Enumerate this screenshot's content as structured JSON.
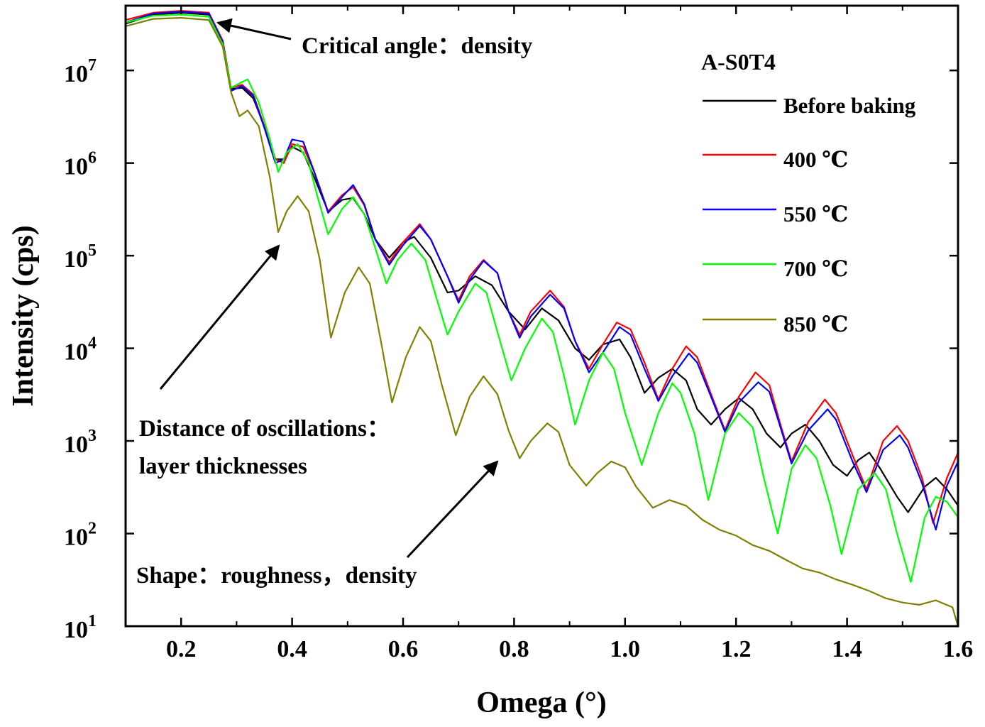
{
  "chart_data": {
    "type": "line",
    "title": "",
    "xlabel": "Omega (°)",
    "ylabel": "Intensity (cps)",
    "yscale": "log",
    "xlim": [
      0.1,
      1.6
    ],
    "ylim": [
      10,
      50000000
    ],
    "x_ticks": [
      "0.2",
      "0.4",
      "0.6",
      "0.8",
      "1.0",
      "1.2",
      "1.4",
      "1.6"
    ],
    "y_ticks": [
      {
        "base": "10",
        "exp": "1"
      },
      {
        "base": "10",
        "exp": "2"
      },
      {
        "base": "10",
        "exp": "3"
      },
      {
        "base": "10",
        "exp": "4"
      },
      {
        "base": "10",
        "exp": "5"
      },
      {
        "base": "10",
        "exp": "6"
      },
      {
        "base": "10",
        "exp": "7"
      }
    ],
    "legend_title": "A-S0T4",
    "legend_placement": "top-right",
    "series": [
      {
        "name": "Before baking",
        "color": "#000000",
        "x": [
          0.1,
          0.15,
          0.2,
          0.25,
          0.275,
          0.29,
          0.31,
          0.33,
          0.35,
          0.37,
          0.385,
          0.4,
          0.42,
          0.44,
          0.465,
          0.49,
          0.51,
          0.53,
          0.55,
          0.575,
          0.6,
          0.62,
          0.65,
          0.68,
          0.7,
          0.73,
          0.76,
          0.79,
          0.82,
          0.85,
          0.88,
          0.91,
          0.935,
          0.96,
          0.99,
          1.01,
          1.035,
          1.06,
          1.085,
          1.11,
          1.13,
          1.155,
          1.18,
          1.205,
          1.23,
          1.255,
          1.28,
          1.3,
          1.325,
          1.35,
          1.375,
          1.4,
          1.42,
          1.44,
          1.46,
          1.49,
          1.51,
          1.54,
          1.56,
          1.58,
          1.6
        ],
        "y": [
          32000000,
          40000000,
          42000000,
          40000000,
          20000000,
          6300000,
          6500000,
          5000000,
          2500000,
          1100000,
          1100000,
          1500000,
          1300000,
          700000,
          300000,
          400000,
          420000,
          280000,
          150000,
          95000,
          140000,
          160000,
          95000,
          40000,
          42000,
          60000,
          48000,
          25000,
          16000,
          27000,
          20000,
          10000,
          7500,
          11000,
          12500,
          8000,
          3300,
          4800,
          6000,
          4500,
          2200,
          1500,
          2200,
          2900,
          2200,
          1200,
          850,
          1200,
          1500,
          1000,
          550,
          420,
          620,
          750,
          500,
          250,
          170,
          320,
          400,
          300,
          200
        ]
      },
      {
        "name": "400 ℃",
        "color": "#ff0000",
        "x": [
          0.1,
          0.15,
          0.2,
          0.25,
          0.275,
          0.29,
          0.31,
          0.33,
          0.35,
          0.37,
          0.385,
          0.4,
          0.42,
          0.44,
          0.465,
          0.49,
          0.51,
          0.53,
          0.55,
          0.575,
          0.6,
          0.63,
          0.65,
          0.68,
          0.7,
          0.72,
          0.745,
          0.77,
          0.79,
          0.81,
          0.83,
          0.865,
          0.89,
          0.91,
          0.935,
          0.96,
          0.985,
          1.01,
          1.035,
          1.06,
          1.085,
          1.11,
          1.13,
          1.155,
          1.18,
          1.205,
          1.235,
          1.26,
          1.28,
          1.3,
          1.33,
          1.36,
          1.38,
          1.41,
          1.435,
          1.465,
          1.49,
          1.51,
          1.535,
          1.555,
          1.58,
          1.6
        ],
        "y": [
          35000000,
          42000000,
          44000000,
          42000000,
          21000000,
          6500000,
          7000000,
          5500000,
          2500000,
          1100000,
          1000000,
          1600000,
          1500000,
          800000,
          300000,
          450000,
          550000,
          350000,
          150000,
          85000,
          140000,
          220000,
          150000,
          60000,
          33000,
          60000,
          90000,
          65000,
          25000,
          14000,
          25000,
          42000,
          28000,
          12000,
          6000,
          11000,
          19000,
          16000,
          7000,
          2800,
          6000,
          10500,
          8000,
          3200,
          1300,
          3000,
          5500,
          4000,
          1500,
          600,
          1600,
          2800,
          2000,
          700,
          300,
          1000,
          1450,
          1000,
          400,
          130,
          400,
          750
        ]
      },
      {
        "name": "550 ℃",
        "color": "#0000ff",
        "x": [
          0.1,
          0.15,
          0.2,
          0.25,
          0.275,
          0.29,
          0.31,
          0.33,
          0.35,
          0.37,
          0.385,
          0.4,
          0.42,
          0.44,
          0.465,
          0.49,
          0.51,
          0.53,
          0.55,
          0.575,
          0.6,
          0.63,
          0.65,
          0.68,
          0.7,
          0.72,
          0.745,
          0.77,
          0.79,
          0.81,
          0.83,
          0.865,
          0.89,
          0.91,
          0.935,
          0.96,
          0.99,
          1.01,
          1.035,
          1.06,
          1.085,
          1.115,
          1.13,
          1.155,
          1.18,
          1.205,
          1.24,
          1.26,
          1.28,
          1.3,
          1.33,
          1.365,
          1.38,
          1.41,
          1.435,
          1.465,
          1.495,
          1.51,
          1.535,
          1.56,
          1.58,
          1.6
        ],
        "y": [
          33000000,
          41000000,
          43000000,
          41000000,
          20000000,
          6000000,
          6800000,
          5300000,
          2400000,
          1000000,
          1100000,
          1800000,
          1700000,
          800000,
          290000,
          430000,
          580000,
          360000,
          150000,
          80000,
          130000,
          210000,
          150000,
          60000,
          31000,
          55000,
          88000,
          65000,
          25000,
          13000,
          22000,
          38000,
          27000,
          12000,
          5500,
          9000,
          17000,
          14000,
          6000,
          2700,
          5000,
          8800,
          7000,
          3000,
          1250,
          2600,
          4300,
          3400,
          1400,
          570,
          1300,
          2200,
          1700,
          600,
          280,
          800,
          1150,
          850,
          350,
          110,
          330,
          600
        ]
      },
      {
        "name": "700 ℃",
        "color": "#00ff00",
        "x": [
          0.1,
          0.15,
          0.2,
          0.25,
          0.275,
          0.29,
          0.31,
          0.32,
          0.34,
          0.36,
          0.375,
          0.39,
          0.41,
          0.43,
          0.445,
          0.465,
          0.49,
          0.51,
          0.53,
          0.55,
          0.57,
          0.59,
          0.615,
          0.64,
          0.66,
          0.68,
          0.7,
          0.73,
          0.75,
          0.77,
          0.795,
          0.82,
          0.85,
          0.87,
          0.89,
          0.91,
          0.935,
          0.96,
          0.98,
          1.0,
          1.03,
          1.06,
          1.085,
          1.1,
          1.125,
          1.15,
          1.18,
          1.205,
          1.23,
          1.25,
          1.275,
          1.3,
          1.325,
          1.345,
          1.37,
          1.39,
          1.42,
          1.45,
          1.47,
          1.49,
          1.515,
          1.54,
          1.56,
          1.58,
          1.6
        ],
        "y": [
          33000000,
          39000000,
          40000000,
          38000000,
          19000000,
          6500000,
          7500000,
          8000000,
          4500000,
          1800000,
          800000,
          1300000,
          1600000,
          1000000,
          450000,
          170000,
          320000,
          430000,
          280000,
          120000,
          50000,
          90000,
          135000,
          90000,
          35000,
          14000,
          25000,
          50000,
          40000,
          15000,
          4500,
          10000,
          21000,
          15000,
          5000,
          1500,
          4500,
          9000,
          6000,
          2000,
          550,
          2000,
          4200,
          3300,
          1200,
          230,
          1200,
          2000,
          1400,
          400,
          100,
          500,
          900,
          650,
          200,
          60,
          300,
          450,
          300,
          100,
          30,
          150,
          250,
          220,
          150
        ]
      },
      {
        "name": "850 ℃",
        "color": "#808000",
        "x": [
          0.1,
          0.15,
          0.2,
          0.25,
          0.275,
          0.29,
          0.305,
          0.32,
          0.34,
          0.36,
          0.375,
          0.39,
          0.41,
          0.43,
          0.45,
          0.47,
          0.495,
          0.52,
          0.54,
          0.56,
          0.58,
          0.605,
          0.63,
          0.65,
          0.67,
          0.695,
          0.72,
          0.745,
          0.77,
          0.79,
          0.81,
          0.83,
          0.86,
          0.88,
          0.9,
          0.93,
          0.95,
          0.975,
          1.0,
          1.02,
          1.05,
          1.08,
          1.11,
          1.14,
          1.17,
          1.2,
          1.23,
          1.26,
          1.29,
          1.32,
          1.35,
          1.38,
          1.41,
          1.44,
          1.47,
          1.5,
          1.53,
          1.56,
          1.59,
          1.6
        ],
        "y": [
          30000000,
          36000000,
          37000000,
          35000000,
          18000000,
          5800000,
          3200000,
          3700000,
          2500000,
          700000,
          180000,
          300000,
          440000,
          300000,
          90000,
          13000,
          40000,
          75000,
          50000,
          12000,
          2600,
          8000,
          17000,
          12000,
          4000,
          1150,
          3000,
          5000,
          3200,
          1300,
          650,
          1000,
          1550,
          1250,
          550,
          330,
          450,
          600,
          520,
          320,
          190,
          230,
          200,
          140,
          110,
          95,
          75,
          65,
          52,
          42,
          38,
          32,
          28,
          24,
          20,
          18,
          17,
          19,
          16,
          10
        ]
      }
    ]
  },
  "annotations": {
    "critical": "Critical angle：density",
    "distance_line1": "Distance of oscillations：",
    "distance_line2": "layer thicknesses",
    "shape": "Shape：roughness，density"
  },
  "colors": {
    "axis": "#000000",
    "background": "#ffffff"
  }
}
